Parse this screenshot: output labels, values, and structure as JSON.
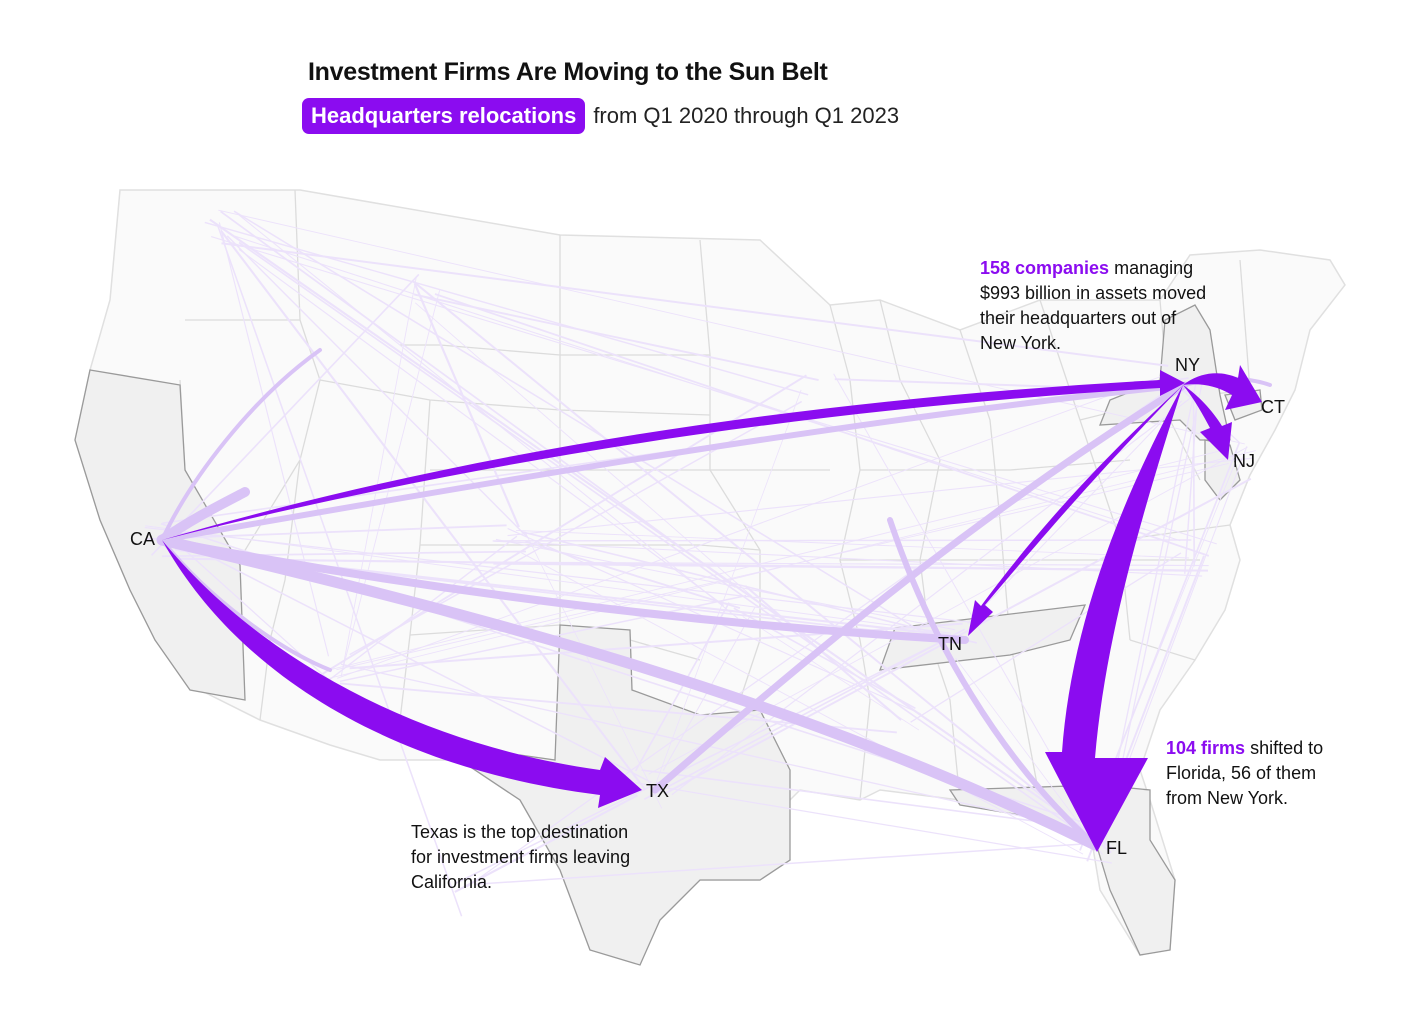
{
  "header": {
    "title": "Investment Firms Are Moving to the Sun Belt",
    "pill_label": "Headquarters relocations",
    "subtitle_rest": "from Q1 2020 through Q1 2023"
  },
  "colors": {
    "accent": "#8b0cf0",
    "flow_light": "#d7c1f5",
    "flow_faint": "#ece2fb",
    "state_border": "#d6d6d6",
    "highlight_state_fill": "#f2f2f2",
    "highlight_state_border": "#9a9a9a"
  },
  "labels": {
    "ca": "CA",
    "ny": "NY",
    "ct": "CT",
    "nj": "NJ",
    "tn": "TN",
    "tx": "TX",
    "fl": "FL"
  },
  "annotations": {
    "ny": {
      "highlight": "158 companies",
      "rest_line1": " managing",
      "line2": "$993 billion in assets moved",
      "line3": "their headquarters out of",
      "line4": "New York."
    },
    "fl": {
      "highlight": "104 firms",
      "rest_line1": " shifted to",
      "line2": "Florida, 56 of them",
      "line3": "from New York."
    },
    "tx": {
      "line1": "Texas is the top destination",
      "line2": "for investment firms leaving",
      "line3": "California."
    }
  },
  "flows_highlighted": [
    {
      "from": "CA",
      "to": "NY"
    },
    {
      "from": "CA",
      "to": "TX"
    },
    {
      "from": "NY",
      "to": "FL"
    },
    {
      "from": "NY",
      "to": "TN"
    },
    {
      "from": "NY",
      "to": "CT"
    },
    {
      "from": "NY",
      "to": "NJ"
    }
  ],
  "flows_secondary": [
    {
      "from": "CA",
      "to": "FL"
    },
    {
      "from": "CA",
      "to": "TN"
    },
    {
      "from": "NY",
      "to": "TX"
    },
    {
      "from": "TX",
      "to": "NY"
    }
  ],
  "highlighted_states": [
    "CA",
    "TX",
    "TN",
    "FL",
    "NY",
    "NJ",
    "CT"
  ]
}
